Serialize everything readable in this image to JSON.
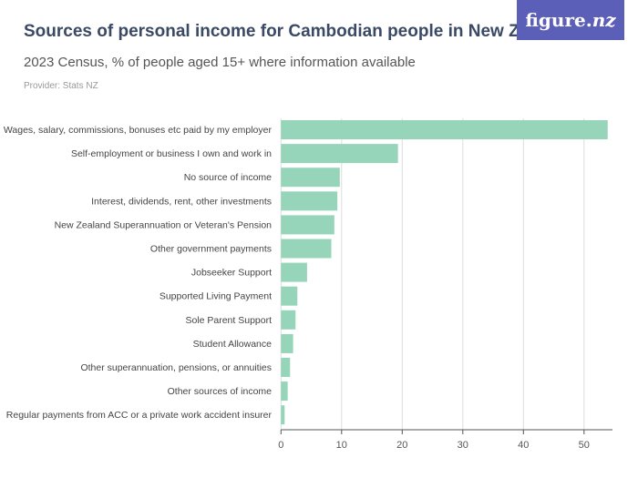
{
  "header": {
    "title": "Sources of personal income for Cambodian people in New Zealand",
    "subtitle": "2023 Census, % of people aged 15+ where information available",
    "provider": "Provider: Stats NZ",
    "logo": "figure.nz"
  },
  "colors": {
    "bar": "#96d5b9",
    "grid": "#dddddd",
    "axis": "#555555"
  },
  "chart_data": {
    "type": "bar",
    "orientation": "horizontal",
    "categories": [
      "Wages, salary, commissions, bonuses etc paid by my employer",
      "Self-employment or business I own and work in",
      "No source of income",
      "Interest, dividends, rent, other investments",
      "New Zealand Superannuation or Veteran's Pension",
      "Other government payments",
      "Jobseeker Support",
      "Supported Living Payment",
      "Sole Parent Support",
      "Student Allowance",
      "Other superannuation, pensions, or annuities",
      "Other sources of income",
      "Regular payments from ACC or a private work accident insurer"
    ],
    "values": [
      53.9,
      19.3,
      9.7,
      9.3,
      8.8,
      8.3,
      4.3,
      2.7,
      2.4,
      2.0,
      1.5,
      1.1,
      0.6
    ],
    "xlim": [
      0,
      54.5
    ],
    "xticks": [
      0,
      10,
      20,
      30,
      40,
      50
    ],
    "grid": true
  }
}
